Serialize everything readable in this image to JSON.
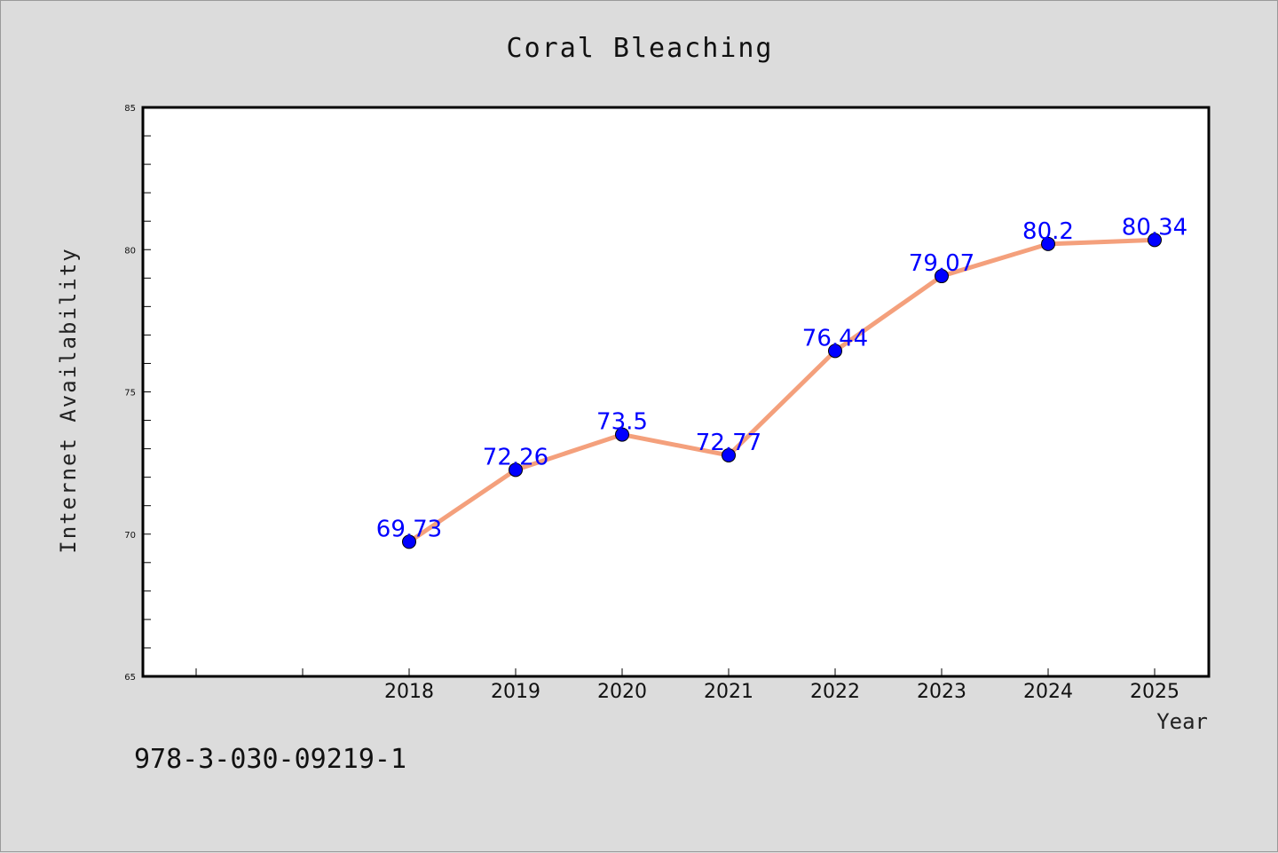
{
  "chart_data": {
    "type": "line",
    "title": "Coral Bleaching",
    "xlabel": "Year",
    "ylabel": "Internet Availability",
    "x": [
      "2018",
      "2019",
      "2020",
      "2021",
      "2022",
      "2023",
      "2024",
      "2025"
    ],
    "series": [
      {
        "values": [
          69.73,
          72.26,
          73.5,
          72.77,
          76.44,
          79.07,
          80.2,
          80.34
        ],
        "labels": [
          "69.73",
          "72.26",
          "73.5",
          "72.77",
          "76.44",
          "79.07",
          "80.2",
          "80.34"
        ],
        "line_color": "#f4a07c",
        "marker_color": "#0000ff"
      }
    ],
    "ylim": [
      65,
      85
    ],
    "yticks": [
      "65",
      "70",
      "75",
      "80",
      "85"
    ],
    "grid": false,
    "legend": "none"
  },
  "annotation": "978-3-030-09219-1",
  "colors": {
    "background": "#dcdcdc",
    "plot_background": "#ffffff",
    "data_label": "#0000ff"
  }
}
